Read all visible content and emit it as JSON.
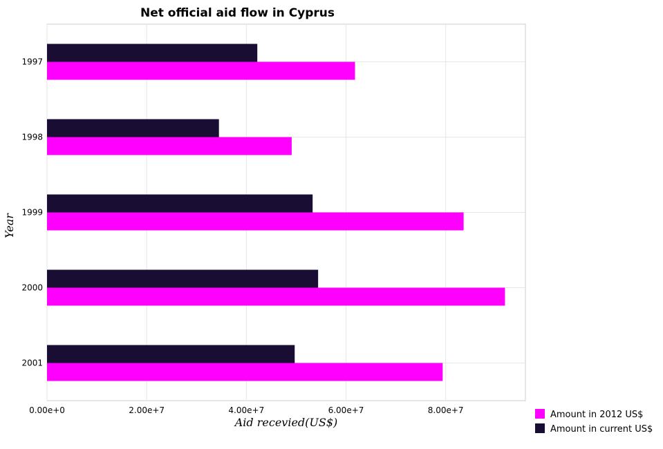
{
  "chart_data": {
    "type": "bar",
    "orientation": "horizontal",
    "title": "Net official aid flow in Cyprus",
    "xlabel": "Aid recevied(US$)",
    "ylabel": "Year",
    "categories": [
      "1997",
      "1998",
      "1999",
      "2000",
      "2001"
    ],
    "series": [
      {
        "name": "Amount in 2012 US$",
        "color": "#ff00ff",
        "values": [
          61800000,
          49100000,
          83600000,
          91900000,
          79400000
        ]
      },
      {
        "name": "Amount in current US$",
        "color": "#1a0d33",
        "values": [
          42200000,
          34500000,
          53300000,
          54400000,
          49700000
        ]
      }
    ],
    "xlim": [
      0,
      96000000
    ],
    "xticks": [
      0,
      20000000,
      40000000,
      60000000,
      80000000
    ],
    "xtick_labels": [
      "0.00e+0",
      "2.00e+7",
      "4.00e+7",
      "6.00e+7",
      "8.00e+7"
    ],
    "grid": true,
    "legend_position": "bottom-right"
  }
}
